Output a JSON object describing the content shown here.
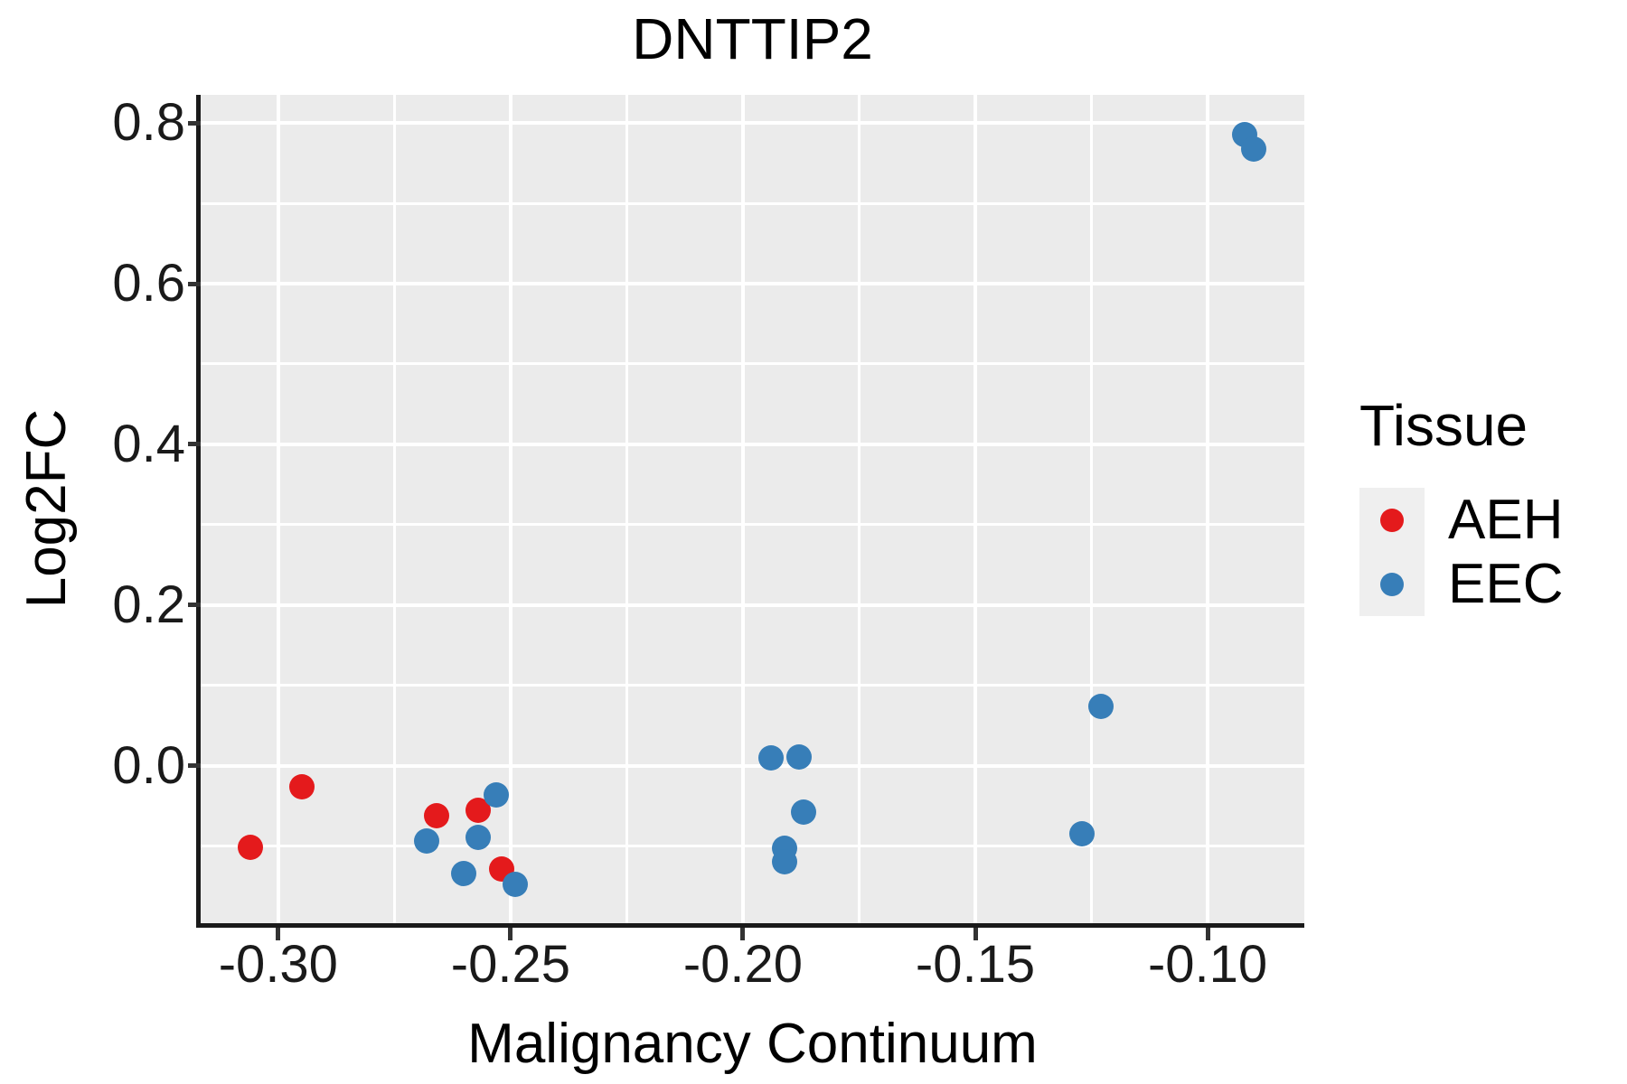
{
  "title": "DNTTIP2",
  "chart_data": {
    "type": "scatter",
    "title": "DNTTIP2",
    "xlabel": "Malignancy Continuum",
    "ylabel": "Log2FC",
    "xlim": [
      -0.3167,
      -0.0792
    ],
    "ylim": [
      -0.196,
      0.835
    ],
    "grid": true,
    "panel_bg": "#EBEBEB",
    "grid_color": "#FFFFFF",
    "x_ticks": {
      "values": [
        -0.3,
        -0.25,
        -0.2,
        -0.15,
        -0.1
      ],
      "labels": [
        "-0.30",
        "-0.25",
        "-0.20",
        "-0.15",
        "-0.10"
      ]
    },
    "y_ticks": {
      "values": [
        0.0,
        0.2,
        0.4,
        0.6,
        0.8
      ],
      "labels": [
        "0.0",
        "0.2",
        "0.4",
        "0.6",
        "0.8"
      ]
    },
    "x_minor": [
      -0.275,
      -0.225,
      -0.175,
      -0.125
    ],
    "y_minor": [
      -0.1,
      0.1,
      0.3,
      0.5,
      0.7
    ],
    "legend": {
      "title": "Tissue",
      "position": "right"
    },
    "series": [
      {
        "name": "AEH",
        "color": "#E41A1C",
        "points": [
          [
            -0.306,
            -0.101
          ],
          [
            -0.295,
            -0.026
          ],
          [
            -0.266,
            -0.062
          ],
          [
            -0.257,
            -0.056
          ],
          [
            -0.252,
            -0.129
          ]
        ]
      },
      {
        "name": "EEC",
        "color": "#377EB8",
        "points": [
          [
            -0.268,
            -0.094
          ],
          [
            -0.26,
            -0.134
          ],
          [
            -0.257,
            -0.089
          ],
          [
            -0.253,
            -0.036
          ],
          [
            -0.249,
            -0.148
          ],
          [
            -0.194,
            0.01
          ],
          [
            -0.191,
            -0.103
          ],
          [
            -0.191,
            -0.119
          ],
          [
            -0.188,
            0.011
          ],
          [
            -0.187,
            -0.058
          ],
          [
            -0.127,
            -0.085
          ],
          [
            -0.123,
            0.074
          ],
          [
            -0.092,
            0.785
          ],
          [
            -0.09,
            0.768
          ]
        ]
      }
    ]
  }
}
